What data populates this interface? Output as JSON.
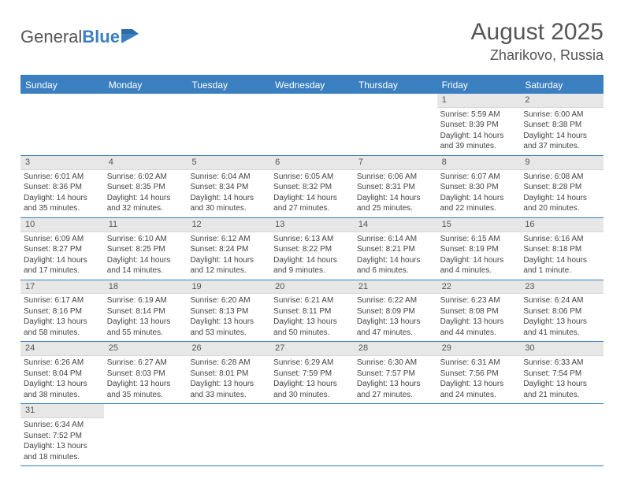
{
  "logo": {
    "part1": "General",
    "part2": "Blue"
  },
  "title": "August 2025",
  "location": "Zharikovo, Russia",
  "colors": {
    "header_bg": "#3a7fbf",
    "header_text": "#ffffff",
    "daynum_bg": "#e7e7e7",
    "border": "#3a7fbf",
    "body_text": "#444444"
  },
  "typography": {
    "title_fontsize": 30,
    "location_fontsize": 18,
    "weekday_fontsize": 12,
    "cell_fontsize": 10
  },
  "weekdays": [
    "Sunday",
    "Monday",
    "Tuesday",
    "Wednesday",
    "Thursday",
    "Friday",
    "Saturday"
  ],
  "weeks": [
    [
      {
        "n": "",
        "sr": "",
        "ss": "",
        "dl": "",
        "empty": true
      },
      {
        "n": "",
        "sr": "",
        "ss": "",
        "dl": "",
        "empty": true
      },
      {
        "n": "",
        "sr": "",
        "ss": "",
        "dl": "",
        "empty": true
      },
      {
        "n": "",
        "sr": "",
        "ss": "",
        "dl": "",
        "empty": true
      },
      {
        "n": "",
        "sr": "",
        "ss": "",
        "dl": "",
        "empty": true
      },
      {
        "n": "1",
        "sr": "Sunrise: 5:59 AM",
        "ss": "Sunset: 8:39 PM",
        "dl": "Daylight: 14 hours and 39 minutes."
      },
      {
        "n": "2",
        "sr": "Sunrise: 6:00 AM",
        "ss": "Sunset: 8:38 PM",
        "dl": "Daylight: 14 hours and 37 minutes."
      }
    ],
    [
      {
        "n": "3",
        "sr": "Sunrise: 6:01 AM",
        "ss": "Sunset: 8:36 PM",
        "dl": "Daylight: 14 hours and 35 minutes."
      },
      {
        "n": "4",
        "sr": "Sunrise: 6:02 AM",
        "ss": "Sunset: 8:35 PM",
        "dl": "Daylight: 14 hours and 32 minutes."
      },
      {
        "n": "5",
        "sr": "Sunrise: 6:04 AM",
        "ss": "Sunset: 8:34 PM",
        "dl": "Daylight: 14 hours and 30 minutes."
      },
      {
        "n": "6",
        "sr": "Sunrise: 6:05 AM",
        "ss": "Sunset: 8:32 PM",
        "dl": "Daylight: 14 hours and 27 minutes."
      },
      {
        "n": "7",
        "sr": "Sunrise: 6:06 AM",
        "ss": "Sunset: 8:31 PM",
        "dl": "Daylight: 14 hours and 25 minutes."
      },
      {
        "n": "8",
        "sr": "Sunrise: 6:07 AM",
        "ss": "Sunset: 8:30 PM",
        "dl": "Daylight: 14 hours and 22 minutes."
      },
      {
        "n": "9",
        "sr": "Sunrise: 6:08 AM",
        "ss": "Sunset: 8:28 PM",
        "dl": "Daylight: 14 hours and 20 minutes."
      }
    ],
    [
      {
        "n": "10",
        "sr": "Sunrise: 6:09 AM",
        "ss": "Sunset: 8:27 PM",
        "dl": "Daylight: 14 hours and 17 minutes."
      },
      {
        "n": "11",
        "sr": "Sunrise: 6:10 AM",
        "ss": "Sunset: 8:25 PM",
        "dl": "Daylight: 14 hours and 14 minutes."
      },
      {
        "n": "12",
        "sr": "Sunrise: 6:12 AM",
        "ss": "Sunset: 8:24 PM",
        "dl": "Daylight: 14 hours and 12 minutes."
      },
      {
        "n": "13",
        "sr": "Sunrise: 6:13 AM",
        "ss": "Sunset: 8:22 PM",
        "dl": "Daylight: 14 hours and 9 minutes."
      },
      {
        "n": "14",
        "sr": "Sunrise: 6:14 AM",
        "ss": "Sunset: 8:21 PM",
        "dl": "Daylight: 14 hours and 6 minutes."
      },
      {
        "n": "15",
        "sr": "Sunrise: 6:15 AM",
        "ss": "Sunset: 8:19 PM",
        "dl": "Daylight: 14 hours and 4 minutes."
      },
      {
        "n": "16",
        "sr": "Sunrise: 6:16 AM",
        "ss": "Sunset: 8:18 PM",
        "dl": "Daylight: 14 hours and 1 minute."
      }
    ],
    [
      {
        "n": "17",
        "sr": "Sunrise: 6:17 AM",
        "ss": "Sunset: 8:16 PM",
        "dl": "Daylight: 13 hours and 58 minutes."
      },
      {
        "n": "18",
        "sr": "Sunrise: 6:19 AM",
        "ss": "Sunset: 8:14 PM",
        "dl": "Daylight: 13 hours and 55 minutes."
      },
      {
        "n": "19",
        "sr": "Sunrise: 6:20 AM",
        "ss": "Sunset: 8:13 PM",
        "dl": "Daylight: 13 hours and 53 minutes."
      },
      {
        "n": "20",
        "sr": "Sunrise: 6:21 AM",
        "ss": "Sunset: 8:11 PM",
        "dl": "Daylight: 13 hours and 50 minutes."
      },
      {
        "n": "21",
        "sr": "Sunrise: 6:22 AM",
        "ss": "Sunset: 8:09 PM",
        "dl": "Daylight: 13 hours and 47 minutes."
      },
      {
        "n": "22",
        "sr": "Sunrise: 6:23 AM",
        "ss": "Sunset: 8:08 PM",
        "dl": "Daylight: 13 hours and 44 minutes."
      },
      {
        "n": "23",
        "sr": "Sunrise: 6:24 AM",
        "ss": "Sunset: 8:06 PM",
        "dl": "Daylight: 13 hours and 41 minutes."
      }
    ],
    [
      {
        "n": "24",
        "sr": "Sunrise: 6:26 AM",
        "ss": "Sunset: 8:04 PM",
        "dl": "Daylight: 13 hours and 38 minutes."
      },
      {
        "n": "25",
        "sr": "Sunrise: 6:27 AM",
        "ss": "Sunset: 8:03 PM",
        "dl": "Daylight: 13 hours and 35 minutes."
      },
      {
        "n": "26",
        "sr": "Sunrise: 6:28 AM",
        "ss": "Sunset: 8:01 PM",
        "dl": "Daylight: 13 hours and 33 minutes."
      },
      {
        "n": "27",
        "sr": "Sunrise: 6:29 AM",
        "ss": "Sunset: 7:59 PM",
        "dl": "Daylight: 13 hours and 30 minutes."
      },
      {
        "n": "28",
        "sr": "Sunrise: 6:30 AM",
        "ss": "Sunset: 7:57 PM",
        "dl": "Daylight: 13 hours and 27 minutes."
      },
      {
        "n": "29",
        "sr": "Sunrise: 6:31 AM",
        "ss": "Sunset: 7:56 PM",
        "dl": "Daylight: 13 hours and 24 minutes."
      },
      {
        "n": "30",
        "sr": "Sunrise: 6:33 AM",
        "ss": "Sunset: 7:54 PM",
        "dl": "Daylight: 13 hours and 21 minutes."
      }
    ],
    [
      {
        "n": "31",
        "sr": "Sunrise: 6:34 AM",
        "ss": "Sunset: 7:52 PM",
        "dl": "Daylight: 13 hours and 18 minutes."
      },
      {
        "n": "",
        "sr": "",
        "ss": "",
        "dl": "",
        "empty": true
      },
      {
        "n": "",
        "sr": "",
        "ss": "",
        "dl": "",
        "empty": true
      },
      {
        "n": "",
        "sr": "",
        "ss": "",
        "dl": "",
        "empty": true
      },
      {
        "n": "",
        "sr": "",
        "ss": "",
        "dl": "",
        "empty": true
      },
      {
        "n": "",
        "sr": "",
        "ss": "",
        "dl": "",
        "empty": true
      },
      {
        "n": "",
        "sr": "",
        "ss": "",
        "dl": "",
        "empty": true
      }
    ]
  ]
}
